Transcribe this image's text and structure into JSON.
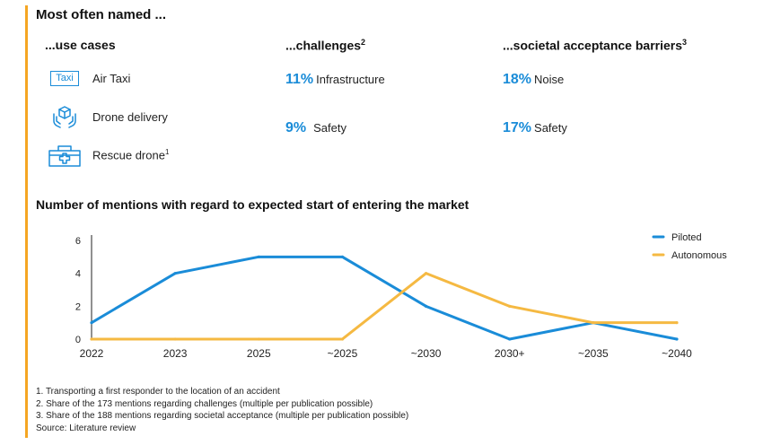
{
  "header": {
    "title": "Most often named ..."
  },
  "use_cases": {
    "heading": "...use cases",
    "items": [
      {
        "label": "Air Taxi",
        "icon": "taxi-sign-icon",
        "badge": "Taxi",
        "note": ""
      },
      {
        "label": "Drone delivery",
        "icon": "package-in-hands-icon",
        "badge": "",
        "note": ""
      },
      {
        "label": "Rescue drone",
        "icon": "medical-case-icon",
        "badge": "",
        "note": "1"
      }
    ]
  },
  "challenges": {
    "heading": "...challenges",
    "note": "2",
    "items": [
      {
        "pct": "11%",
        "label": "Infrastructure"
      },
      {
        "pct": "9%",
        "label": "Safety"
      }
    ]
  },
  "acceptance": {
    "heading": "...societal acceptance barriers",
    "note": "3",
    "items": [
      {
        "pct": "18%",
        "label": "Noise"
      },
      {
        "pct": "17%",
        "label": "Safety"
      }
    ]
  },
  "chart_data": {
    "type": "line",
    "title": "Number of mentions with regard to expected start of entering the market",
    "categories": [
      "2022",
      "2023",
      "2025",
      "~2025",
      "~2030",
      "2030+",
      "~2035",
      "~2040"
    ],
    "series": [
      {
        "name": "Piloted",
        "color": "#1A8CD8",
        "values": [
          1,
          4,
          5,
          5,
          2,
          0,
          1,
          0
        ]
      },
      {
        "name": "Autonomous",
        "color": "#F5B942",
        "values": [
          0,
          0,
          0,
          0,
          4,
          2,
          1,
          1
        ]
      }
    ],
    "yticks": [
      "0",
      "2",
      "4",
      "6"
    ],
    "ylim": [
      0,
      6
    ],
    "legend_position": "top-right",
    "grid": false
  },
  "footnotes": [
    "1. Transporting a first responder to the location of an accident",
    "2. Share of the 173 mentions regarding challenges (multiple per publication possible)",
    "3. Share of the 188 mentions regarding societal acceptance (multiple per publication possible)",
    "Source: Literature review"
  ],
  "colors": {
    "accent": "#F5A623",
    "blue": "#1A8CD8",
    "yellow": "#F5B942"
  }
}
